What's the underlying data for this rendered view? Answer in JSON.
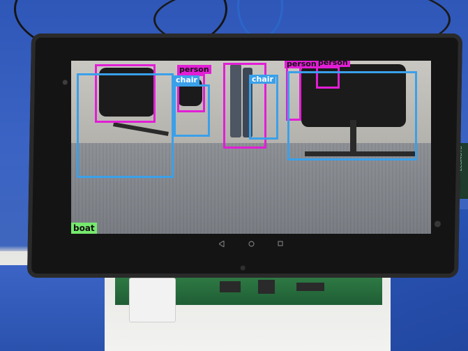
{
  "detections": [
    {
      "label": "person",
      "kind": "person"
    },
    {
      "label": "chair",
      "kind": "chair"
    },
    {
      "label": "person",
      "kind": "person"
    },
    {
      "label": "chair",
      "kind": "chair"
    },
    {
      "label": "person",
      "kind": "person"
    },
    {
      "label": "person",
      "kind": "person"
    },
    {
      "label": "chair",
      "kind": "chair"
    },
    {
      "label": "boat",
      "kind": "boat"
    }
  ],
  "navbar": {
    "back_icon": "triangle-back-icon",
    "home_icon": "circle-home-icon",
    "recents_icon": "square-recents-icon"
  },
  "device": {
    "side_label": "ECOMOTO"
  },
  "colors": {
    "person_box": "#e21ed6",
    "chair_box": "#3aa0ea",
    "boat_box": "#76e96e"
  }
}
